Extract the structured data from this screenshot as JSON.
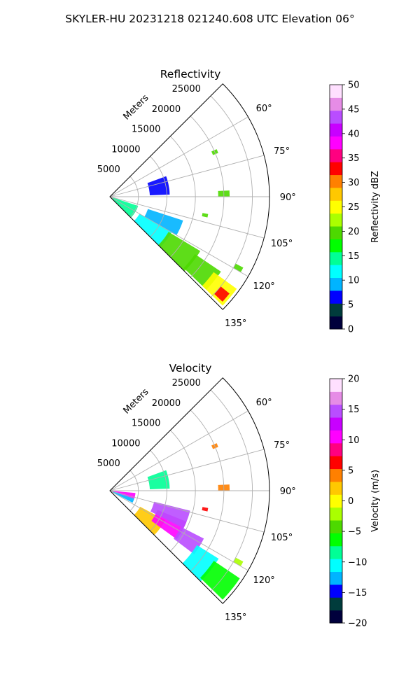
{
  "figure": {
    "suptitle": "SKYLER-HU  20231218  021240.608 UTC Elevation 06°"
  },
  "chart_data": [
    {
      "type": "heatmap",
      "title": "Reflectivity",
      "radial_axis_label": "Meters",
      "range_rings": [
        "5000",
        "10000",
        "15000",
        "20000",
        "25000"
      ],
      "azimuth_ticks": [
        "60°",
        "75°",
        "90°",
        "105°",
        "120°",
        "135°"
      ],
      "azimuth_range_deg": [
        45,
        135
      ],
      "radial_range_m": [
        0,
        28000
      ],
      "grid": true,
      "colorbar": {
        "label": "Reflectivity dBZ",
        "ticks": [
          "0",
          "5",
          "10",
          "15",
          "20",
          "25",
          "30",
          "35",
          "40",
          "45",
          "50"
        ],
        "range": [
          0,
          50
        ],
        "colormap": [
          "#00003c",
          "#003c3c",
          "#0000ff",
          "#00b4ff",
          "#00ffff",
          "#00ff96",
          "#00ff00",
          "#4dd900",
          "#aaff00",
          "#ffff00",
          "#ffc800",
          "#ff8000",
          "#ff0000",
          "#ff0080",
          "#ff00ff",
          "#c800ff",
          "#b94dff",
          "#e68ce6",
          "#ffe0ff"
        ]
      },
      "echo_regions": [
        {
          "az_start": 108,
          "az_end": 135,
          "r_start": 500,
          "r_end": 5200,
          "value": 14
        },
        {
          "az_start": 120,
          "az_end": 135,
          "r_start": 6000,
          "r_end": 12500,
          "value": 13
        },
        {
          "az_start": 121,
          "az_end": 135,
          "r_start": 12000,
          "r_end": 18500,
          "value": 19
        },
        {
          "az_start": 124,
          "az_end": 134,
          "r_start": 18000,
          "r_end": 23500,
          "value": 21
        },
        {
          "az_start": 126,
          "az_end": 134,
          "r_start": 22500,
          "r_end": 27500,
          "value": 25
        },
        {
          "az_start": 129,
          "az_end": 133,
          "r_start": 25000,
          "r_end": 27000,
          "value": 32
        },
        {
          "az_start": 108,
          "az_end": 120,
          "r_start": 7000,
          "r_end": 13500,
          "value": 10
        },
        {
          "az_start": 70,
          "az_end": 88,
          "r_start": 7000,
          "r_end": 10500,
          "value": 6
        },
        {
          "az_start": 66,
          "az_end": 68,
          "r_start": 19500,
          "r_end": 20500,
          "value": 19
        },
        {
          "az_start": 87,
          "az_end": 90,
          "r_start": 19000,
          "r_end": 21000,
          "value": 19
        },
        {
          "az_start": 100,
          "az_end": 102,
          "r_start": 16500,
          "r_end": 17500,
          "value": 19
        },
        {
          "az_start": 118,
          "az_end": 120,
          "r_start": 25000,
          "r_end": 26500,
          "value": 19
        }
      ]
    },
    {
      "type": "heatmap",
      "title": "Velocity",
      "radial_axis_label": "Meters",
      "range_rings": [
        "5000",
        "10000",
        "15000",
        "20000",
        "25000"
      ],
      "azimuth_ticks": [
        "60°",
        "75°",
        "90°",
        "105°",
        "120°",
        "135°"
      ],
      "azimuth_range_deg": [
        45,
        135
      ],
      "radial_range_m": [
        0,
        28000
      ],
      "grid": true,
      "colorbar": {
        "label": "Velocity (m/s)",
        "ticks": [
          "−20",
          "−15",
          "−10",
          "−5",
          "0",
          "5",
          "10",
          "15",
          "20"
        ],
        "range": [
          -20,
          20
        ],
        "colormap": [
          "#00003c",
          "#003c3c",
          "#0000ff",
          "#00b4ff",
          "#00ffff",
          "#00ff96",
          "#00ff00",
          "#4dd900",
          "#aaff00",
          "#ffff00",
          "#ffc800",
          "#ff8000",
          "#ff0000",
          "#ff0080",
          "#ff00ff",
          "#c800ff",
          "#b94dff",
          "#e68ce6",
          "#ffe0ff"
        ]
      },
      "echo_regions": [
        {
          "az_start": 95,
          "az_end": 108,
          "r_start": 500,
          "r_end": 4500,
          "value": 10
        },
        {
          "az_start": 108,
          "az_end": 118,
          "r_start": 500,
          "r_end": 4500,
          "value": -13
        },
        {
          "az_start": 118,
          "az_end": 135,
          "r_start": 6000,
          "r_end": 11000,
          "value": 3
        },
        {
          "az_start": 112,
          "az_end": 126,
          "r_start": 9000,
          "r_end": 14500,
          "value": 10
        },
        {
          "az_start": 104,
          "az_end": 117,
          "r_start": 8000,
          "r_end": 14500,
          "value": 15
        },
        {
          "az_start": 117,
          "az_end": 127,
          "r_start": 14000,
          "r_end": 18500,
          "value": 15
        },
        {
          "az_start": 122,
          "az_end": 135,
          "r_start": 18000,
          "r_end": 22500,
          "value": -11
        },
        {
          "az_start": 124,
          "az_end": 134,
          "r_start": 22000,
          "r_end": 27500,
          "value": -7
        },
        {
          "az_start": 70,
          "az_end": 88,
          "r_start": 7000,
          "r_end": 10500,
          "value": -8
        },
        {
          "az_start": 66,
          "az_end": 68,
          "r_start": 19500,
          "r_end": 20500,
          "value": 5
        },
        {
          "az_start": 87,
          "az_end": 90,
          "r_start": 19000,
          "r_end": 21000,
          "value": 4
        },
        {
          "az_start": 100,
          "az_end": 102,
          "r_start": 16500,
          "r_end": 17500,
          "value": 6
        },
        {
          "az_start": 118,
          "az_end": 120,
          "r_start": 25000,
          "r_end": 26500,
          "value": -2
        }
      ]
    }
  ]
}
